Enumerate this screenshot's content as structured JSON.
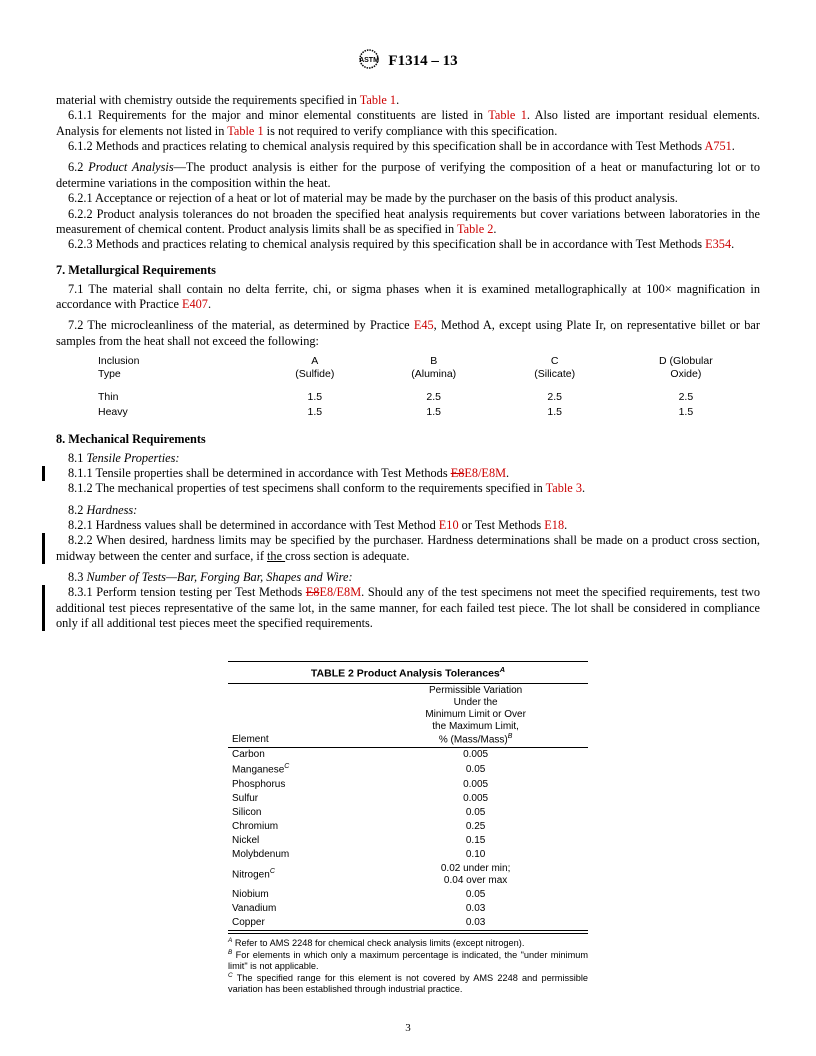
{
  "header": {
    "designation": "F1314 – 13"
  },
  "body": {
    "p0": "material with chemistry outside the requirements specified in ",
    "link_t1": "Table 1",
    "p0b": ".",
    "p611a": "6.1.1 Requirements for the major and minor elemental constituents are listed in ",
    "p611b": ". Also listed are important residual elements. Analysis for elements not listed in ",
    "p611c": " is not required to verify compliance with this specification.",
    "p612a": "6.1.2 Methods and practices relating to chemical analysis required by this specification shall be in accordance with Test Methods ",
    "link_a751": "A751",
    "dot": ".",
    "p62h": "Product Analysis",
    "p62a": "6.2 ",
    "p62b": "—The product analysis is either for the purpose of verifying the composition of a heat or manufacturing lot or to determine variations in the composition within the heat.",
    "p621": "6.2.1 Acceptance or rejection of a heat or lot of material may be made by the purchaser on the basis of this product analysis.",
    "p622a": "6.2.2 Product analysis tolerances do not broaden the specified heat analysis requirements but cover variations between laboratories in the measurement of chemical content. Product analysis limits shall be as specified in ",
    "link_t2": "Table 2",
    "p623a": "6.2.3 Methods and practices relating to chemical analysis required by this specification shall be in accordance with Test Methods ",
    "link_e354": "E354",
    "sec7": "7.  Metallurgical Requirements",
    "p71a": "7.1 The material shall contain no delta ferrite, chi, or sigma phases when it is examined metallographically at 100× magnification in accordance with Practice ",
    "link_e407": "E407",
    "p72a": "7.2 The microcleanliness of the material, as determined by Practice ",
    "link_e45": "E45",
    "p72b": ", Method A, except using Plate Ir, on representative billet or bar samples from the heat shall not exceed the following:",
    "sec8": "8.  Mechanical Requirements",
    "p81": "8.1 ",
    "p81h": "Tensile Properties:",
    "p811a": "8.1.1 Tensile properties shall be determined in accordance with Test Methods ",
    "strike_e8": "E8",
    "link_e8": "E8/E8M",
    "p812a": "8.1.2 The mechanical properties of test specimens shall conform to the requirements specified in ",
    "link_t3": "Table 3",
    "p82": "8.2 ",
    "p82h": "Hardness:",
    "p821a": "8.2.1 Hardness values shall be determined in accordance with Test Method ",
    "link_e10": "E10",
    "p821b": " or Test Methods ",
    "link_e18": "E18",
    "p822a": "8.2.2 When desired, hardness limits may be specified by the purchaser. Hardness determinations shall be made on a product cross section, midway between the center and surface, if ",
    "p822u": "the ",
    "p822b": "cross section is adequate.",
    "p83": "8.3 ",
    "p83h": "Number of Tests—Bar, Forging Bar, Shapes and Wire:",
    "p831a": "8.3.1 Perform tension testing per Test Methods ",
    "p831b": ". Should any of the test specimens not meet the specified requirements, test two additional test pieces representative of the same lot, in the same manner, for each failed test piece. The lot shall be considered in compliance only if all additional test pieces meet the specified requirements."
  },
  "inclusion": {
    "h_type": "Inclusion\nType",
    "hA": "A\n(Sulfide)",
    "hB": "B\n(Alumina)",
    "hC": "C\n(Silicate)",
    "hD": "D (Globular\nOxide)",
    "r1": "Thin",
    "r1A": "1.5",
    "r1B": "2.5",
    "r1C": "2.5",
    "r1D": "2.5",
    "r2": "Heavy",
    "r2A": "1.5",
    "r2B": "1.5",
    "r2C": "1.5",
    "r2D": "1.5"
  },
  "table2": {
    "title": "TABLE 2 Product Analysis Tolerances",
    "supA": "A",
    "col1": "Element",
    "col2": "Permissible Variation\nUnder the\nMinimum Limit or Over\nthe Maximum Limit,\n% (Mass/Mass)",
    "supB": "B",
    "rows": [
      {
        "e": "Carbon",
        "sup": "",
        "v": "0.005"
      },
      {
        "e": "Manganese",
        "sup": "C",
        "v": "0.05"
      },
      {
        "e": "Phosphorus",
        "sup": "",
        "v": "0.005"
      },
      {
        "e": "Sulfur",
        "sup": "",
        "v": "0.005"
      },
      {
        "e": "Silicon",
        "sup": "",
        "v": "0.05"
      },
      {
        "e": "Chromium",
        "sup": "",
        "v": "0.25"
      },
      {
        "e": "Nickel",
        "sup": "",
        "v": "0.15"
      },
      {
        "e": "Molybdenum",
        "sup": "",
        "v": "0.10"
      },
      {
        "e": "Nitrogen",
        "sup": "C",
        "v": "0.02 under min;\n0.04 over max"
      },
      {
        "e": "Niobium",
        "sup": "",
        "v": "0.05"
      },
      {
        "e": "Vanadium",
        "sup": "",
        "v": "0.03"
      },
      {
        "e": "Copper",
        "sup": "",
        "v": "0.03"
      }
    ],
    "fnA": " Refer to AMS 2248 for chemical check analysis limits (except nitrogen).",
    "fnB": " For elements in which only a maximum percentage is indicated, the \"under minimum limit\" is not applicable.",
    "fnC": " The specified range for this element is not covered by AMS 2248 and permissible variation has been established through industrial practice."
  },
  "pagenum": "3"
}
